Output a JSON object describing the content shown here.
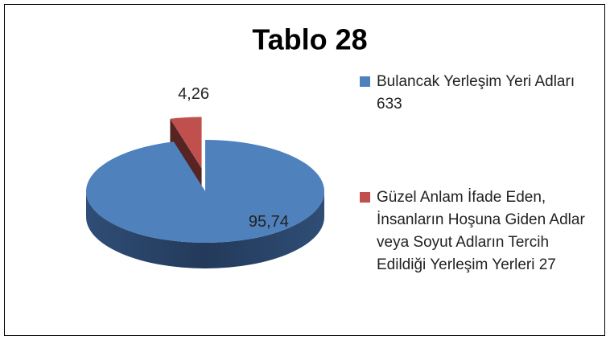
{
  "chart_data": {
    "type": "pie",
    "title": "Tablo 28",
    "categories": [
      "Bulancak Yerleşim Yeri Adları 633",
      "Güzel Anlam İfade Eden, İnsanların Hoşuna Giden Adlar veya Soyut Adların Tercih Edildiği Yerleşim Yerleri 27"
    ],
    "values": [
      95.74,
      4.26
    ],
    "value_labels": [
      "95,74",
      "4,26"
    ],
    "colors": [
      "#4f81bd",
      "#c0504d"
    ],
    "legend": "right"
  }
}
